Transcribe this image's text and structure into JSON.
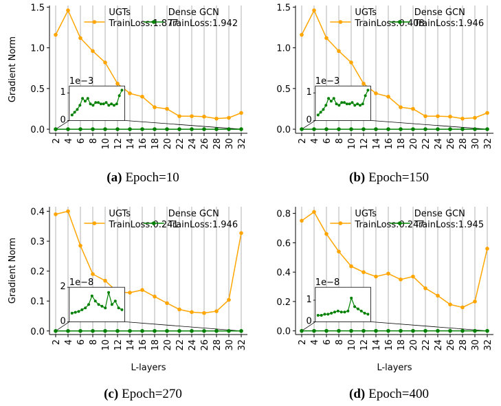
{
  "chart_data": [
    {
      "type": "line",
      "grid": "x",
      "ylabel": "Gradient Norm",
      "caption_label": "(a)",
      "caption_text": "Epoch=10",
      "x": [
        2,
        4,
        6,
        8,
        10,
        12,
        14,
        16,
        18,
        20,
        22,
        24,
        26,
        28,
        30,
        32
      ],
      "xlim": [
        1,
        33
      ],
      "xticks": [
        2,
        4,
        6,
        8,
        10,
        12,
        14,
        16,
        18,
        20,
        22,
        24,
        26,
        28,
        30,
        32
      ],
      "ylim": [
        -0.05,
        1.52
      ],
      "yticks": [
        {
          "value": 0,
          "label": "0.0"
        },
        {
          "value": 0.5,
          "label": "0.5"
        },
        {
          "value": 1,
          "label": "1.0"
        },
        {
          "value": 1.5,
          "label": "1.5"
        }
      ],
      "series": [
        {
          "name": "UGTs",
          "train_loss": "TrainLoss:1.877",
          "color": "#ffa500",
          "values": [
            1.16,
            1.46,
            1.12,
            0.96,
            0.82,
            0.56,
            0.44,
            0.4,
            0.27,
            0.25,
            0.16,
            0.16,
            0.155,
            0.13,
            0.14,
            0.2
          ]
        },
        {
          "name": "Dense GCN",
          "train_loss": "TrainLoss:1.942",
          "color": "#008000",
          "values": [
            0,
            0,
            0,
            0,
            0,
            0,
            0,
            0,
            0,
            0,
            0,
            0,
            0,
            0,
            0,
            0
          ]
        }
      ],
      "inset": {
        "offset_text": "1e−3",
        "ylim": [
          0,
          1.25
        ],
        "yticks": [
          0,
          1
        ],
        "values": [
          0.2,
          0.3,
          0.4,
          0.55,
          0.8,
          0.7,
          0.8,
          0.6,
          0.55,
          0.65,
          0.65,
          0.6,
          0.6,
          0.65,
          0.55,
          0.6,
          0.55,
          0.6,
          0.9,
          1.1
        ]
      }
    },
    {
      "type": "line",
      "grid": "x",
      "caption_label": "(b)",
      "caption_text": "Epoch=150",
      "x": [
        2,
        4,
        6,
        8,
        10,
        12,
        14,
        16,
        18,
        20,
        22,
        24,
        26,
        28,
        30,
        32
      ],
      "xlim": [
        1,
        33
      ],
      "xticks": [
        2,
        4,
        6,
        8,
        10,
        12,
        14,
        16,
        18,
        20,
        22,
        24,
        26,
        28,
        30,
        32
      ],
      "ylim": [
        -0.05,
        1.52
      ],
      "yticks": [
        {
          "value": 0,
          "label": "0.0"
        },
        {
          "value": 0.5,
          "label": "0.5"
        },
        {
          "value": 1,
          "label": "1.0"
        },
        {
          "value": 1.5,
          "label": "1.5"
        }
      ],
      "series": [
        {
          "name": "UGTs",
          "train_loss": "TrainLoss:0.408",
          "color": "#ffa500",
          "values": [
            1.16,
            1.46,
            1.12,
            0.96,
            0.82,
            0.56,
            0.44,
            0.4,
            0.27,
            0.25,
            0.16,
            0.16,
            0.155,
            0.13,
            0.14,
            0.2
          ]
        },
        {
          "name": "Dense GCN",
          "train_loss": "TrainLoss:1.946",
          "color": "#008000",
          "values": [
            0,
            0,
            0,
            0,
            0,
            0,
            0,
            0,
            0,
            0,
            0,
            0,
            0,
            0,
            0,
            0
          ]
        }
      ],
      "inset": {
        "offset_text": "1e−3",
        "ylim": [
          0,
          1.25
        ],
        "yticks": [
          0,
          1
        ],
        "values": [
          0.2,
          0.3,
          0.4,
          0.55,
          0.8,
          0.7,
          0.8,
          0.6,
          0.55,
          0.65,
          0.65,
          0.6,
          0.6,
          0.65,
          0.55,
          0.6,
          0.55,
          0.6,
          0.9,
          1.1
        ]
      }
    },
    {
      "type": "line",
      "grid": "x",
      "ylabel": "Gradient Norm",
      "xlabel": "L-layers",
      "caption_label": "(c)",
      "caption_text": "Epoch=270",
      "x": [
        2,
        4,
        6,
        8,
        10,
        12,
        14,
        16,
        18,
        20,
        22,
        24,
        26,
        28,
        30,
        32
      ],
      "xlim": [
        1,
        33
      ],
      "xticks": [
        2,
        4,
        6,
        8,
        10,
        12,
        14,
        16,
        18,
        20,
        22,
        24,
        26,
        28,
        30,
        32
      ],
      "ylim": [
        -0.012,
        0.415
      ],
      "yticks": [
        {
          "value": 0,
          "label": "0.0"
        },
        {
          "value": 0.1,
          "label": "0.1"
        },
        {
          "value": 0.2,
          "label": "0.2"
        },
        {
          "value": 0.3,
          "label": "0.3"
        },
        {
          "value": 0.4,
          "label": "0.4"
        }
      ],
      "series": [
        {
          "name": "UGTs",
          "train_loss": "TrainLoss:0.241",
          "color": "#ffa500",
          "values": [
            0.39,
            0.4,
            0.285,
            0.19,
            0.168,
            0.13,
            0.128,
            0.137,
            0.115,
            0.093,
            0.072,
            0.063,
            0.06,
            0.066,
            0.104,
            0.327
          ]
        },
        {
          "name": "Dense GCN",
          "train_loss": "TrainLoss:1.946",
          "color": "#008000",
          "values": [
            0,
            0,
            0,
            0,
            0,
            0,
            0,
            0,
            0,
            0,
            0,
            0,
            0,
            0,
            0,
            0
          ]
        }
      ],
      "inset": {
        "offset_text": "1e−8",
        "ylim": [
          0,
          2
        ],
        "yticks": [
          0,
          2
        ],
        "values": [
          0.5,
          0.55,
          0.6,
          0.7,
          0.8,
          1.0,
          1.5,
          1.2,
          1.0,
          0.9,
          0.8,
          1.7,
          1.0,
          1.2,
          0.8,
          0.7
        ]
      }
    },
    {
      "type": "line",
      "grid": "x",
      "xlabel": "L-layers",
      "caption_label": "(d)",
      "caption_text": "Epoch=400",
      "x": [
        2,
        4,
        6,
        8,
        10,
        12,
        14,
        16,
        18,
        20,
        22,
        24,
        26,
        28,
        30,
        32
      ],
      "xlim": [
        1,
        33
      ],
      "xticks": [
        2,
        4,
        6,
        8,
        10,
        12,
        14,
        16,
        18,
        20,
        22,
        24,
        26,
        28,
        30,
        32
      ],
      "ylim": [
        -0.025,
        0.845
      ],
      "yticks": [
        {
          "value": 0,
          "label": "0.0"
        },
        {
          "value": 0.2,
          "label": "0.2"
        },
        {
          "value": 0.4,
          "label": "0.4"
        },
        {
          "value": 0.6,
          "label": "0.6"
        },
        {
          "value": 0.8,
          "label": "0.8"
        }
      ],
      "series": [
        {
          "name": "UGTs",
          "train_loss": "TrainLoss:0.247",
          "color": "#ffa500",
          "values": [
            0.75,
            0.81,
            0.66,
            0.54,
            0.44,
            0.4,
            0.37,
            0.39,
            0.35,
            0.37,
            0.29,
            0.24,
            0.18,
            0.16,
            0.2,
            0.56
          ]
        },
        {
          "name": "Dense GCN",
          "train_loss": "TrainLoss:1.945",
          "color": "#008000",
          "values": [
            0,
            0,
            0,
            0,
            0,
            0,
            0,
            0,
            0,
            0,
            0,
            0,
            0,
            0,
            0,
            0
          ]
        }
      ],
      "inset": {
        "offset_text": "1e−8",
        "ylim": [
          0,
          1.6
        ],
        "yticks": [
          0,
          1
        ],
        "values": [
          0.3,
          0.3,
          0.35,
          0.35,
          0.4,
          0.45,
          0.5,
          0.45,
          0.45,
          0.5,
          1.1,
          0.7,
          0.6,
          0.5,
          0.4,
          0.35
        ]
      }
    }
  ]
}
